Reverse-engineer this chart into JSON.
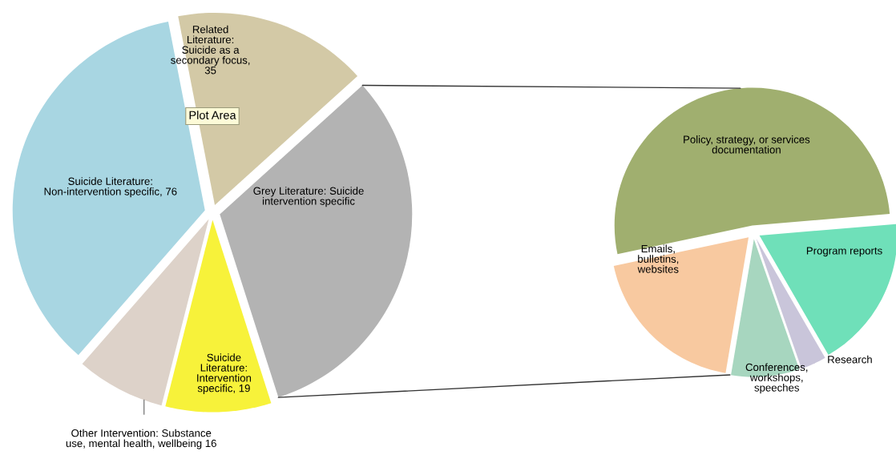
{
  "chart_data": [
    {
      "type": "pie",
      "categories": [
        "Related Literature: Suicide as a secondary focus, 35",
        "Grey Literature: Suicide intervention specific",
        "Suicide Literature: Intervention specific, 19",
        "Other Intervention: Substance use, mental health, wellbeing 16",
        "Suicide Literature: Non-intervention specific, 76"
      ],
      "values": [
        35,
        68,
        19,
        16,
        76
      ],
      "colors": [
        "#d3c9a6",
        "#b3b3b3",
        "#f7f23a",
        "#ddd2c9",
        "#a8d6e2"
      ],
      "annotations": [
        "Plot Area"
      ]
    },
    {
      "type": "pie",
      "categories": [
        "Policy, strategy, or services documentation",
        "Program reports",
        "Research",
        "Conferences, workshops, speeches",
        "Emails, bulletins, websites"
      ],
      "values": [
        52,
        18,
        3,
        8,
        19
      ],
      "colors": [
        "#a0af6f",
        "#6fe0b9",
        "#c9c5da",
        "#a7d6bf",
        "#f8c9a0"
      ]
    }
  ]
}
